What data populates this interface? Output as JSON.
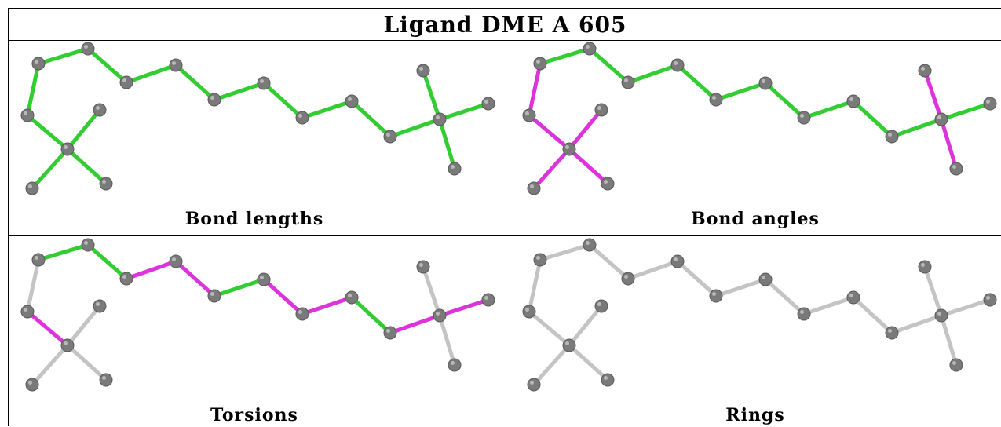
{
  "title": "Ligand DME A 605",
  "colors": {
    "ok": "#33cc33",
    "outlier": "#dd33dd",
    "neutral": "#c4c4c4",
    "atom": "#7a7a7a"
  },
  "panels": [
    {
      "id": "bond-lengths",
      "caption": "Bond lengths",
      "bond_colors": [
        "ok",
        "ok",
        "ok",
        "ok",
        "ok",
        "ok",
        "ok",
        "ok",
        "ok",
        "ok",
        "ok",
        "ok",
        "ok",
        "ok",
        "ok",
        "ok",
        "ok"
      ]
    },
    {
      "id": "bond-angles",
      "caption": "Bond angles",
      "bond_colors": [
        "ok",
        "ok",
        "ok",
        "ok",
        "ok",
        "ok",
        "ok",
        "ok",
        "ok",
        "ok",
        "outlier",
        "outlier",
        "outlier",
        "outlier",
        "outlier",
        "outlier",
        "outlier"
      ]
    },
    {
      "id": "torsions",
      "caption": "Torsions",
      "bond_colors": [
        "ok",
        "ok",
        "outlier",
        "outlier",
        "ok",
        "outlier",
        "outlier",
        "ok",
        "outlier",
        "outlier",
        "neutral",
        "neutral",
        "neutral",
        "outlier",
        "neutral",
        "neutral",
        "neutral"
      ]
    },
    {
      "id": "rings",
      "caption": "Rings",
      "bond_colors": [
        "neutral",
        "neutral",
        "neutral",
        "neutral",
        "neutral",
        "neutral",
        "neutral",
        "neutral",
        "neutral",
        "neutral",
        "neutral",
        "neutral",
        "neutral",
        "neutral",
        "neutral",
        "neutral",
        "neutral"
      ]
    }
  ]
}
